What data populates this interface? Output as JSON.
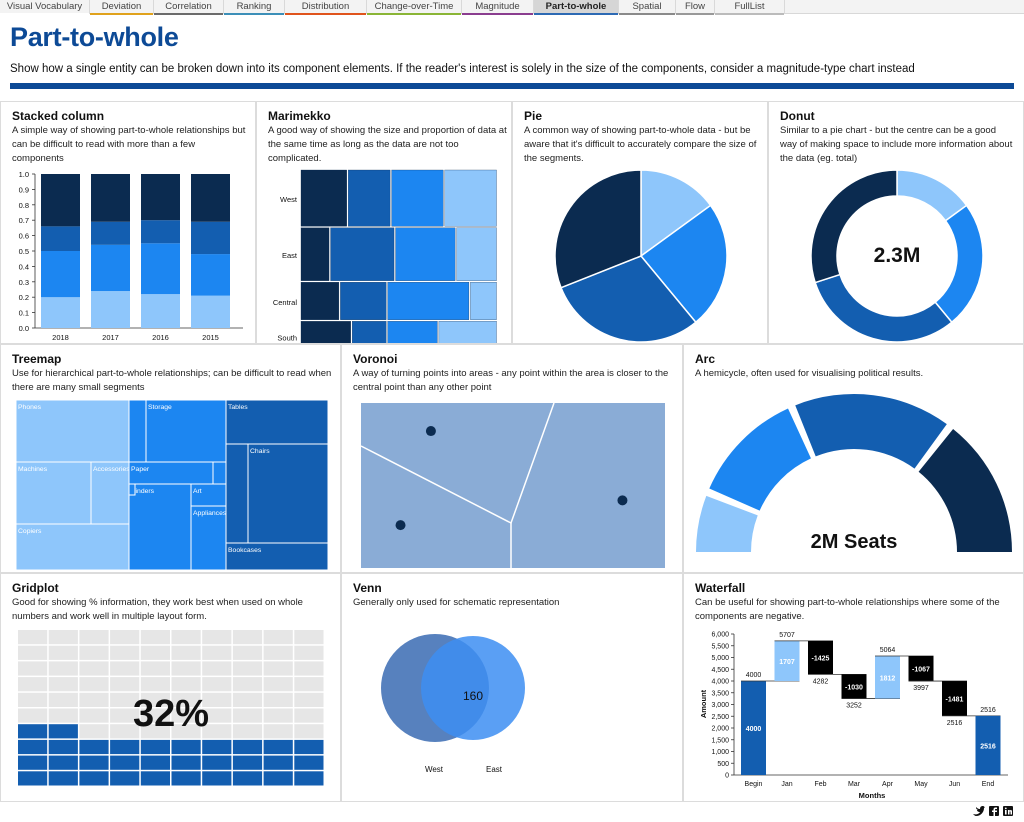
{
  "tabs": [
    {
      "label": "Visual Vocabulary",
      "color": "#ffffff"
    },
    {
      "label": "Deviation",
      "color": "#e0a21c"
    },
    {
      "label": "Correlation",
      "color": "#6b6b6b"
    },
    {
      "label": "Ranking",
      "color": "#3c8fb8"
    },
    {
      "label": "Distribution",
      "color": "#e0541c"
    },
    {
      "label": "Change-over-Time",
      "color": "#8ab536"
    },
    {
      "label": "Magnitude",
      "color": "#8a3d8f"
    },
    {
      "label": "Part-to-whole",
      "color": "#2d6ab4"
    },
    {
      "label": "Spatial",
      "color": "#8a8a8a"
    },
    {
      "label": "Flow",
      "color": "#999999"
    },
    {
      "label": "FullList",
      "color": "#bbbbbb"
    }
  ],
  "active_tab": "Part-to-whole",
  "page": {
    "title": "Part-to-whole",
    "description": "Show how a single entity can be broken down into its component elements. If the reader's interest is solely in the size of the components, consider a magnitude-type chart instead"
  },
  "colors": {
    "navy": "#0b2b50",
    "dark": "#135eb0",
    "mid": "#1c86f1",
    "light": "#8ec6fb",
    "brand": "#0d4a96"
  },
  "cells": {
    "stacked": {
      "title": "Stacked column",
      "desc": "A simple way of showing part-to-whole relationships but can be difficult to read with more than a few components"
    },
    "marimekko": {
      "title": "Marimekko",
      "desc": "A good way of showing the size and proportion of data at the same time as long as the data are not too complicated."
    },
    "pie": {
      "title": "Pie",
      "desc": "A common way of showing part-to-whole data - but be aware that it's difficult to accurately compare the size of the segments."
    },
    "donut": {
      "title": "Donut",
      "desc": "Similar to a pie chart - but the centre can be a good way of making space to include more information about the data (eg. total)",
      "center": "2.3M"
    },
    "treemap": {
      "title": "Treemap",
      "desc": "Use for hierarchical part-to-whole relationships; can be difficult to read when there are many small segments"
    },
    "voronoi": {
      "title": "Voronoi",
      "desc": "A way of turning points into areas - any point within the area is closer to the central point than any other point"
    },
    "arc": {
      "title": "Arc",
      "desc": "A hemicycle, often used for visualising political results.",
      "center": "2M Seats"
    },
    "gridplot": {
      "title": "Gridplot",
      "desc": "Good for showing % information, they work best when used on whole numbers and work well in multiple layout form.",
      "center": "32%",
      "percent": 32
    },
    "venn": {
      "title": "Venn",
      "desc": "Generally only used for schematic representation",
      "overlap": "160",
      "left_label": "West",
      "right_label": "East"
    },
    "waterfall": {
      "title": "Waterfall",
      "desc": "Can be useful for showing part-to-whole relationships where some of the components are negative.",
      "ylabel": "Amount",
      "xlabel": "Months"
    }
  },
  "chart_data": [
    {
      "type": "bar",
      "name": "stacked-column",
      "categories": [
        "2018",
        "2017",
        "2016",
        "2015"
      ],
      "series": [
        {
          "values": [
            0.2,
            0.24,
            0.22,
            0.21
          ],
          "color": "#8ec6fb"
        },
        {
          "values": [
            0.3,
            0.3,
            0.33,
            0.27
          ],
          "color": "#1c86f1"
        },
        {
          "values": [
            0.16,
            0.15,
            0.15,
            0.21
          ],
          "color": "#135eb0"
        },
        {
          "values": [
            0.34,
            0.31,
            0.3,
            0.31
          ],
          "color": "#0b2b50"
        }
      ],
      "yticks": [
        "1.0",
        "0.9",
        "0.8",
        "0.7",
        "0.6",
        "0.5",
        "0.4",
        "0.3",
        "0.2",
        "0.1",
        "0.0"
      ],
      "ylim": [
        0,
        1
      ]
    },
    {
      "type": "bar",
      "name": "marimekko",
      "categories": [
        "West",
        "East",
        "Central",
        "South"
      ],
      "row_shares": [
        0.34,
        0.32,
        0.23,
        0.19
      ],
      "columns": [
        [
          0.24,
          0.22,
          0.27,
          0.27
        ],
        [
          0.15,
          0.33,
          0.31,
          0.21
        ],
        [
          0.2,
          0.24,
          0.42,
          0.14
        ],
        [
          0.26,
          0.18,
          0.26,
          0.3
        ]
      ],
      "colors": [
        "#0b2b50",
        "#135eb0",
        "#1c86f1",
        "#8ec6fb"
      ]
    },
    {
      "type": "pie",
      "name": "pie",
      "values": [
        0.15,
        0.24,
        0.3,
        0.31
      ],
      "colors": [
        "#8ec6fb",
        "#1c86f1",
        "#135eb0",
        "#0b2b50"
      ]
    },
    {
      "type": "pie",
      "name": "donut",
      "values": [
        0.15,
        0.24,
        0.31,
        0.3
      ],
      "colors": [
        "#8ec6fb",
        "#1c86f1",
        "#135eb0",
        "#0b2b50"
      ]
    },
    {
      "type": "heatmap",
      "name": "treemap",
      "groups": [
        {
          "label": "Phones",
          "color": "#8ec6fb"
        },
        {
          "label": "Machines",
          "color": "#8ec6fb"
        },
        {
          "label": "Accessories",
          "color": "#8ec6fb"
        },
        {
          "label": "Copiers",
          "color": "#8ec6fb"
        },
        {
          "label": "Storage",
          "color": "#1c86f1"
        },
        {
          "label": "Paper",
          "color": "#1c86f1"
        },
        {
          "label": "Binders",
          "color": "#1c86f1"
        },
        {
          "label": "Art",
          "color": "#1c86f1"
        },
        {
          "label": "Appliances",
          "color": "#1c86f1"
        },
        {
          "label": "Tables",
          "color": "#135eb0"
        },
        {
          "label": "Chairs",
          "color": "#135eb0"
        },
        {
          "label": "Bookcases",
          "color": "#135eb0"
        }
      ]
    },
    {
      "type": "scatter",
      "name": "voronoi",
      "points": [
        [
          0.23,
          0.17
        ],
        [
          0.13,
          0.74
        ],
        [
          0.86,
          0.59
        ]
      ]
    },
    {
      "type": "pie",
      "name": "arc",
      "values": [
        0.11,
        0.22,
        0.3,
        0.26
      ],
      "colors": [
        "#8ec6fb",
        "#1c86f1",
        "#135eb0",
        "#0b2b50"
      ]
    },
    {
      "type": "bar",
      "name": "waterfall",
      "categories": [
        "Begin",
        "Jan",
        "Feb",
        "Mar",
        "Apr",
        "May",
        "Jun",
        "End"
      ],
      "deltas": [
        4000,
        1707,
        -1425,
        -1030,
        1812,
        -1067,
        -1481,
        2516
      ],
      "totals": [
        4000,
        5707,
        4282,
        3252,
        5064,
        3997,
        2516,
        2516
      ],
      "yticks": [
        "6,000",
        "5,500",
        "5,000",
        "4,500",
        "4,000",
        "3,500",
        "3,000",
        "2,500",
        "2,000",
        "1,500",
        "1,000",
        "500",
        "0"
      ],
      "ylim": [
        0,
        6000
      ]
    }
  ],
  "footer": {
    "icons": [
      "twitter-icon",
      "facebook-icon",
      "linkedin-icon"
    ]
  }
}
